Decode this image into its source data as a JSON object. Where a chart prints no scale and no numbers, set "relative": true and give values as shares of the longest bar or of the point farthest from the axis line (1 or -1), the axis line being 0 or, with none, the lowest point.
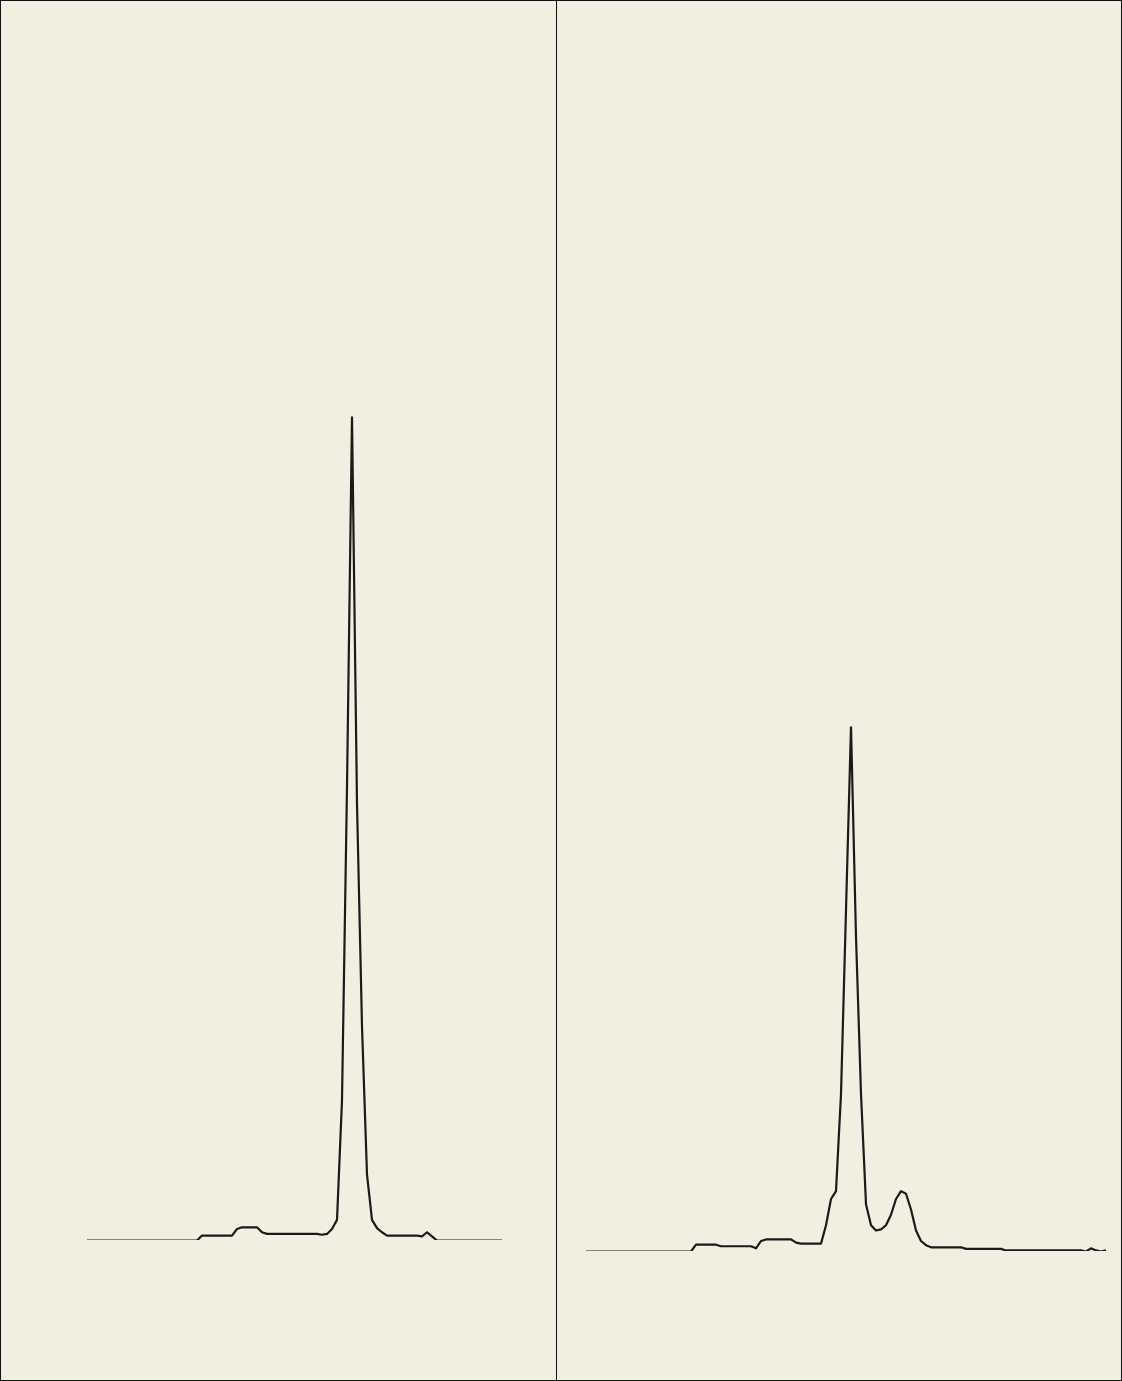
{
  "chart_data": [
    {
      "type": "line",
      "relative": true,
      "categories": [
        null,
        null,
        null,
        null,
        null,
        null,
        null,
        null,
        null,
        null,
        null,
        null,
        null,
        null,
        null,
        null,
        null,
        null,
        null,
        null,
        null,
        null,
        null,
        null,
        null,
        null,
        null,
        null,
        null,
        null,
        null,
        null,
        null,
        null,
        null,
        null,
        null,
        null,
        null,
        null,
        null,
        null,
        null,
        null,
        null,
        null,
        null,
        null,
        null,
        null,
        null,
        null,
        null,
        null,
        null,
        null,
        null,
        null,
        null,
        null,
        null,
        null,
        null,
        null,
        null,
        null,
        null,
        null,
        null,
        null,
        null,
        null,
        null,
        null,
        null,
        null,
        null,
        null,
        null,
        null,
        null,
        null,
        null,
        null
      ],
      "series": [
        {
          "color": "#1a1a1a",
          "values": [
            0,
            0,
            0,
            0,
            0,
            0,
            0,
            0,
            0,
            0,
            0,
            0,
            0,
            0,
            0,
            0,
            0,
            0,
            0,
            0,
            0,
            0,
            0,
            0.006,
            0.006,
            0.006,
            0.006,
            0.006,
            0.006,
            0.006,
            0.014,
            0.016,
            0.016,
            0.016,
            0.016,
            0.01,
            0.008,
            0.008,
            0.008,
            0.008,
            0.008,
            0.008,
            0.008,
            0.008,
            0.008,
            0.008,
            0.008,
            0.007,
            0.008,
            0.014,
            0.025,
            0.17,
            0.55,
            1,
            0.53,
            0.26,
            0.08,
            0.025,
            0.015,
            0.01,
            0.006,
            0.006,
            0.006,
            0.006,
            0.006,
            0.006,
            0.006,
            0.005,
            0.01,
            0.005,
            0,
            0,
            0,
            0,
            0,
            0,
            0,
            0,
            0,
            0,
            0,
            0,
            0,
            0
          ]
        }
      ],
      "line_style": "solid"
    },
    {
      "type": "line",
      "relative": true,
      "categories": [
        null,
        null,
        null,
        null,
        null,
        null,
        null,
        null,
        null,
        null,
        null,
        null,
        null,
        null,
        null,
        null,
        null,
        null,
        null,
        null,
        null,
        null,
        null,
        null,
        null,
        null,
        null,
        null,
        null,
        null,
        null,
        null,
        null,
        null,
        null,
        null,
        null,
        null,
        null,
        null,
        null,
        null,
        null,
        null,
        null,
        null,
        null,
        null,
        null,
        null,
        null,
        null,
        null,
        null,
        null,
        null,
        null,
        null,
        null,
        null,
        null,
        null,
        null,
        null,
        null,
        null,
        null,
        null,
        null,
        null,
        null,
        null,
        null,
        null,
        null,
        null,
        null,
        null,
        null,
        null,
        null,
        null,
        null,
        null,
        null,
        null,
        null,
        null,
        null,
        null,
        null,
        null,
        null,
        null,
        null,
        null,
        null,
        null,
        null,
        null,
        null,
        null,
        null,
        null,
        null
      ],
      "series": [
        {
          "color": "#1a1a1a",
          "values": [
            0,
            0,
            0,
            0,
            0,
            0,
            0,
            0,
            0,
            0,
            0,
            0,
            0,
            0,
            0,
            0,
            0,
            0,
            0,
            0,
            0,
            0,
            0.013,
            0.013,
            0.013,
            0.013,
            0.013,
            0.01,
            0.01,
            0.01,
            0.01,
            0.01,
            0.01,
            0.01,
            0.006,
            0.02,
            0.023,
            0.023,
            0.023,
            0.023,
            0.023,
            0.023,
            0.017,
            0.015,
            0.015,
            0.015,
            0.015,
            0.015,
            0.05,
            0.1,
            0.115,
            0.3,
            0.65,
            1,
            0.6,
            0.3,
            0.09,
            0.05,
            0.04,
            0.042,
            0.05,
            0.07,
            0.1,
            0.115,
            0.11,
            0.08,
            0.04,
            0.02,
            0.012,
            0.008,
            0.008,
            0.008,
            0.008,
            0.008,
            0.008,
            0.008,
            0.005,
            0.005,
            0.005,
            0.005,
            0.005,
            0.005,
            0.005,
            0.005,
            0.002,
            0.002,
            0.002,
            0.002,
            0.002,
            0.002,
            0.002,
            0.002,
            0.002,
            0.002,
            0.002,
            0.002,
            0.002,
            0.002,
            0.002,
            0.002,
            0,
            0.006,
            0.002,
            0,
            0.002
          ]
        }
      ],
      "line_style": "solid"
    }
  ]
}
